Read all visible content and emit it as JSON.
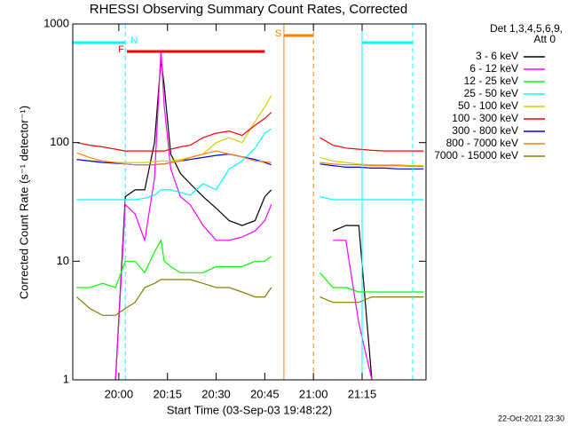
{
  "chart_data": {
    "type": "line",
    "title": "RHESSI Observing Summary Count Rates, Corrected",
    "xlabel": "Start Time (03-Sep-03 19:48:22)",
    "ylabel": "Corrected Count Rate (s⁻¹ detector⁻¹)",
    "legend_header": [
      "Det 1,3,4,5,6,9,",
      "Att 0"
    ],
    "footer": "22-Oct-2021 23:30",
    "log_y": true,
    "xlim": [
      1185.8,
      1294.7
    ],
    "ylim": [
      1,
      1000
    ],
    "xticks": [
      {
        "value": 1200,
        "label": "20:00"
      },
      {
        "value": 1215,
        "label": "20:15"
      },
      {
        "value": 1230,
        "label": "20:30"
      },
      {
        "value": 1245,
        "label": "20:45"
      },
      {
        "value": 1260,
        "label": "21:00"
      },
      {
        "value": 1275,
        "label": "21:15"
      }
    ],
    "yticks": [
      1,
      10,
      100,
      1000
    ],
    "intervals": [
      {
        "label": "N",
        "color": "#00ffff",
        "spans": [
          [
            1185.8,
            1202
          ],
          [
            1275,
            1290.6
          ]
        ]
      },
      {
        "label": "F",
        "color": "#ff0000",
        "spans": [
          [
            1202.5,
            1245
          ]
        ]
      },
      {
        "label": "S",
        "color": "#ff8000",
        "spans": [
          [
            1250.9,
            1260
          ]
        ]
      }
    ],
    "x": [
      1187,
      1191,
      1195,
      1199,
      1202,
      1205,
      1208,
      1211,
      1213,
      1214,
      1216,
      1219,
      1222,
      1226,
      1230,
      1234,
      1238,
      1242,
      1245,
      1247,
      1255,
      1262,
      1266,
      1270,
      1274,
      1278,
      1282,
      1286,
      1290,
      1294
    ],
    "series": [
      {
        "name": "3 - 6 keV",
        "color": "#000000",
        "values": [
          0.8,
          0.8,
          0.8,
          1,
          35,
          40,
          40,
          100,
          500,
          300,
          80,
          55,
          45,
          35,
          28,
          22,
          20,
          22,
          35,
          40,
          null,
          null,
          18,
          20,
          20,
          1,
          0.8,
          0.8,
          0.8,
          0.8
        ]
      },
      {
        "name": "6 - 12 keV",
        "color": "#ff00ff",
        "values": [
          1,
          0.8,
          0.8,
          1,
          30,
          25,
          15,
          50,
          600,
          200,
          60,
          35,
          30,
          20,
          15,
          15,
          16,
          18,
          22,
          30,
          null,
          null,
          15,
          15,
          3,
          1,
          0.8,
          0.8,
          0.8,
          0.8
        ]
      },
      {
        "name": "12 - 25 keV",
        "color": "#00ff00",
        "values": [
          6,
          6,
          6.5,
          6,
          10,
          10,
          8,
          12,
          15,
          10,
          9,
          8,
          8,
          8,
          9,
          9,
          9,
          10,
          10,
          11,
          null,
          8,
          6,
          6,
          5.5,
          5.5,
          5.5,
          5.5,
          5.5,
          5.5
        ]
      },
      {
        "name": "25 - 50 keV",
        "color": "#00ffff",
        "values": [
          33,
          33,
          33,
          33,
          33,
          33,
          34,
          36,
          40,
          40,
          40,
          38,
          36,
          45,
          40,
          60,
          70,
          90,
          120,
          130,
          null,
          35,
          33,
          33,
          33,
          33,
          33,
          33,
          33,
          33
        ]
      },
      {
        "name": "50 - 100 keV",
        "color": "#d0d000",
        "values": [
          72,
          70,
          70,
          68,
          68,
          68,
          68,
          69,
          70,
          70,
          70,
          72,
          75,
          80,
          100,
          110,
          100,
          150,
          200,
          250,
          null,
          75,
          70,
          68,
          66,
          65,
          65,
          65,
          64,
          64
        ]
      },
      {
        "name": "100 - 300 keV",
        "color": "#ff0000",
        "values": [
          100,
          95,
          92,
          88,
          85,
          85,
          85,
          85,
          85,
          85,
          88,
          92,
          95,
          110,
          120,
          125,
          115,
          140,
          160,
          180,
          null,
          110,
          95,
          90,
          88,
          86,
          85,
          85,
          85,
          85
        ]
      },
      {
        "name": "300 - 800 keV",
        "color": "#0000ff",
        "values": [
          72,
          70,
          68,
          67,
          66,
          65,
          65,
          65,
          66,
          66,
          68,
          70,
          72,
          75,
          78,
          80,
          76,
          72,
          68,
          65,
          null,
          66,
          64,
          62,
          62,
          61,
          61,
          60,
          60,
          60
        ]
      },
      {
        "name": "800 - 7000 keV",
        "color": "#ff8000",
        "values": [
          82,
          75,
          70,
          68,
          66,
          65,
          65,
          65,
          66,
          66,
          68,
          70,
          75,
          80,
          85,
          80,
          76,
          70,
          69,
          68,
          null,
          68,
          66,
          65,
          65,
          64,
          64,
          64,
          63,
          63
        ]
      },
      {
        "name": "7000 - 15000 keV",
        "color": "#808000",
        "values": [
          5,
          4,
          3.5,
          3.5,
          4,
          4.5,
          6,
          6.5,
          7,
          7,
          7,
          7,
          7,
          6.5,
          6,
          6,
          5.5,
          5,
          5,
          6,
          null,
          5,
          4.5,
          4.5,
          4.5,
          5,
          5,
          5,
          5,
          5
        ]
      }
    ]
  }
}
